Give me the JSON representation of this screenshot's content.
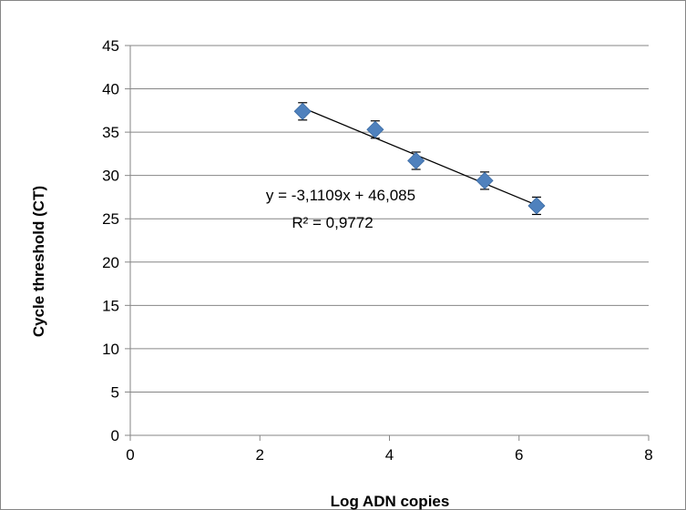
{
  "chart_data": {
    "type": "scatter",
    "title": "",
    "xlabel": "Log ADN copies",
    "ylabel": "Cycle threshold (CT)",
    "xlim": [
      0,
      8
    ],
    "ylim": [
      0,
      45
    ],
    "x_ticks": [
      0,
      2,
      4,
      6,
      8
    ],
    "y_ticks": [
      0,
      5,
      10,
      15,
      20,
      25,
      30,
      35,
      40,
      45
    ],
    "grid": "horizontal",
    "legend": "none",
    "series": [
      {
        "points": [
          {
            "x": 2.66,
            "y": 37.4,
            "err": 1.0
          },
          {
            "x": 3.78,
            "y": 35.3,
            "err": 1.0
          },
          {
            "x": 4.41,
            "y": 31.7,
            "err": 1.0
          },
          {
            "x": 5.47,
            "y": 29.4,
            "err": 1.0
          },
          {
            "x": 6.27,
            "y": 26.5,
            "err": 1.0
          }
        ],
        "color": "#4f81bd"
      }
    ],
    "trendline": {
      "type": "linear",
      "slope": -3.1109,
      "intercept": 46.085,
      "x_range": [
        2.66,
        6.27
      ],
      "color": "#000000"
    },
    "annotations": {
      "equation": "y = -3,1109x + 46,085",
      "r_squared": "R² = 0,9772"
    }
  }
}
